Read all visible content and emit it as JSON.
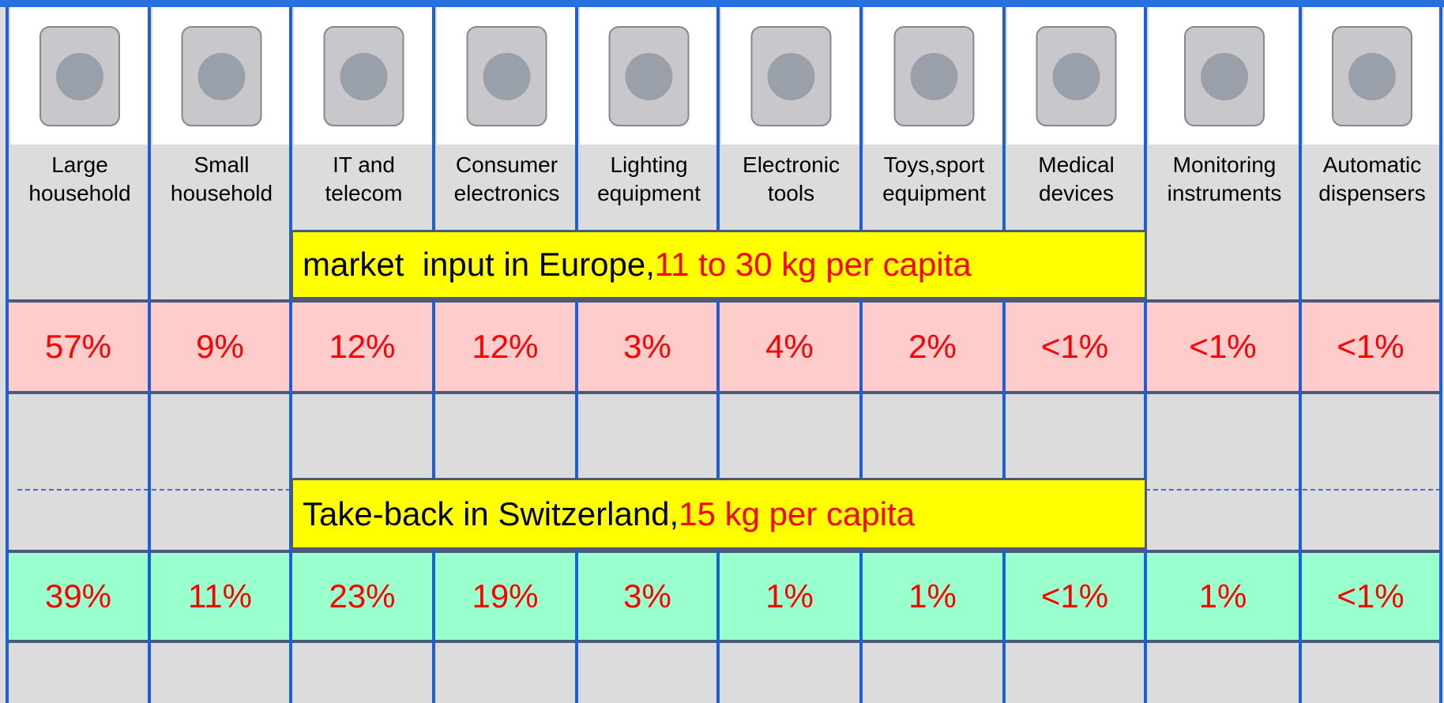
{
  "columns": [
    {
      "label": [
        "Large",
        "household"
      ]
    },
    {
      "label": [
        "Small",
        "household"
      ]
    },
    {
      "label": [
        "IT and",
        "telecom"
      ]
    },
    {
      "label": [
        "Consumer",
        "electronics"
      ]
    },
    {
      "label": [
        "Lighting",
        "equipment"
      ]
    },
    {
      "label": [
        "Electronic",
        "tools"
      ]
    },
    {
      "label": [
        "Toys,sport",
        "equipment"
      ]
    },
    {
      "label": [
        "Medical",
        "devices"
      ]
    },
    {
      "label": [
        "Monitoring",
        "instruments"
      ]
    },
    {
      "label": [
        "Automatic",
        "dispensers"
      ]
    }
  ],
  "europe": {
    "text": "market  input in Europe,",
    "highlight": "11 to 30 kg per capita",
    "shares": [
      "57%",
      "9%",
      "12%",
      "12%",
      "3%",
      "4%",
      "2%",
      "<1%",
      "<1%",
      "<1%"
    ]
  },
  "switzerland": {
    "text": "Take-back in Switzerland,",
    "highlight": "15 kg per capita",
    "shares": [
      "39%",
      "11%",
      "23%",
      "19%",
      "3%",
      "1%",
      "1%",
      "<1%",
      "1%",
      "<1%"
    ]
  }
}
